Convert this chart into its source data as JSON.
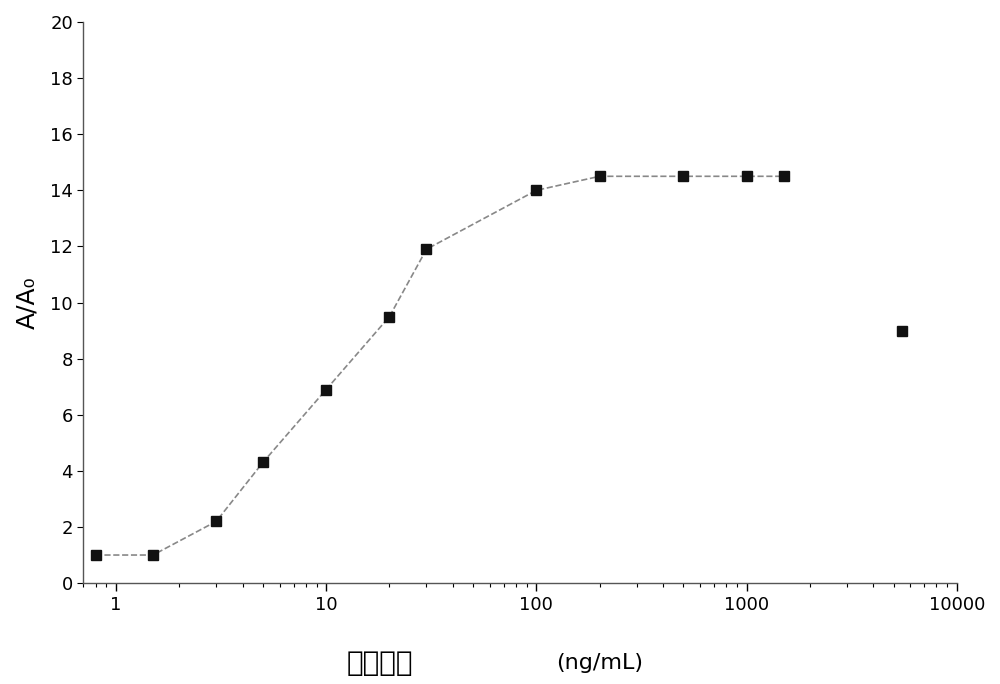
{
  "x_data": [
    0.8,
    1.5,
    3.0,
    5.0,
    10.0,
    20.0,
    30.0,
    100.0,
    200.0,
    500.0,
    1000.0,
    1500.0
  ],
  "y_data": [
    1.0,
    1.0,
    2.2,
    4.3,
    6.9,
    9.5,
    11.9,
    14.0,
    14.5,
    14.5,
    14.5,
    14.5
  ],
  "outlier_x": 5500.0,
  "outlier_y": 9.0,
  "xlim": [
    0.7,
    10000
  ],
  "ylim": [
    0,
    20
  ],
  "yticks": [
    0,
    2,
    4,
    6,
    8,
    10,
    12,
    14,
    16,
    18,
    20
  ],
  "xtick_labels": [
    "1",
    "10",
    "100",
    "1000",
    "10000"
  ],
  "xtick_values": [
    1,
    10,
    100,
    1000,
    10000
  ],
  "ylabel": "A/A₀",
  "xlabel_main": "抗原浓度",
  "xlabel_unit": "(ng/mL)",
  "line_color": "#888888",
  "marker_color": "#111111",
  "marker_size": 7,
  "line_width": 1.2,
  "bg_color": "#ffffff",
  "label_fontsize": 18,
  "tick_fontsize": 13
}
